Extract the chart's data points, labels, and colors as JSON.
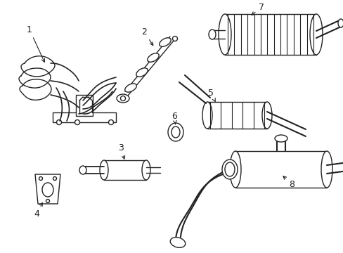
{
  "bg_color": "#ffffff",
  "line_color": "#222222",
  "lw": 1.0,
  "fig_w": 4.89,
  "fig_h": 3.6,
  "dpi": 100
}
